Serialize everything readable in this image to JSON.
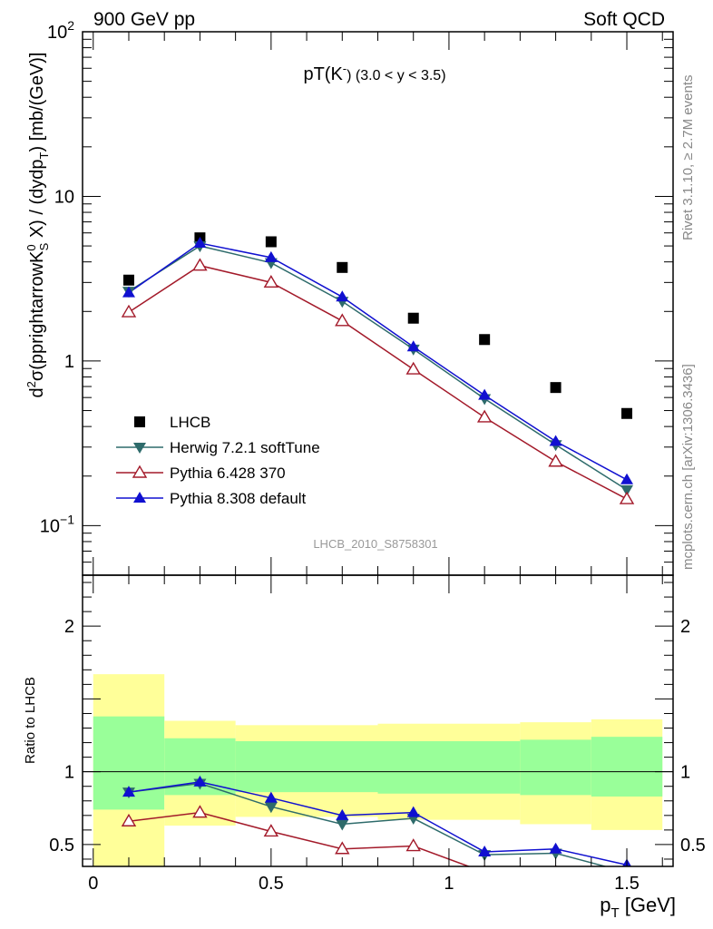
{
  "header": {
    "left": "900 GeV pp",
    "right": "Soft QCD"
  },
  "side_text": {
    "rivet": "Rivet 3.1.10, ≥ 2.7M events",
    "site": "mcplots.cern.ch [arXiv:1306.3436]"
  },
  "colors": {
    "lhcb": "#000000",
    "herwig": "#2e6b6b",
    "pythia6": "#a31a2a",
    "pythia8": "#1010d0",
    "band_outer": "#ffff99",
    "band_inner": "#99ff99"
  },
  "chart_data": [
    {
      "type": "scatter",
      "title_main": "pT(K",
      "title_sup": "-",
      "title_tail": ") (3.0 < y < 3.5)",
      "ylabel": "d²σ(pprightarrowK⁰S X) / (dydpT) [mb/(GeV)]",
      "ylabel_parts": {
        "a": "d",
        "sup1": "2",
        "b": "σ(pprightarrowK",
        "sup2": "0",
        "sub2": "S",
        "c": " X) / (dydp",
        "sub3": "T",
        "d": ") [mb/(GeV)]"
      },
      "xlim": [
        -0.03,
        1.63
      ],
      "ylim": [
        0.05,
        100
      ],
      "yscale": "log",
      "y_ticks": [
        {
          "value": 0.1,
          "base": "10",
          "exp": "−1"
        },
        {
          "value": 1,
          "base": "1",
          "exp": ""
        },
        {
          "value": 10,
          "base": "10",
          "exp": ""
        },
        {
          "value": 100,
          "base": "10",
          "exp": "2"
        }
      ],
      "watermark": "LHCB_2010_S8758301",
      "legend_position": "bottom-left",
      "series": [
        {
          "name": "LHCB",
          "marker": "square",
          "color": "#000000",
          "x": [
            0.1,
            0.3,
            0.5,
            0.7,
            0.9,
            1.1,
            1.3,
            1.5
          ],
          "y": [
            3.1,
            5.6,
            5.3,
            3.7,
            1.82,
            1.35,
            0.69,
            0.48
          ]
        },
        {
          "name": "Herwig 7.2.1 softTune",
          "marker": "triangle-down",
          "color": "#2e6b6b",
          "x": [
            0.1,
            0.3,
            0.5,
            0.7,
            0.9,
            1.1,
            1.3,
            1.5
          ],
          "y": [
            2.65,
            5.0,
            3.95,
            2.3,
            1.18,
            0.59,
            0.31,
            0.165
          ]
        },
        {
          "name": "Pythia 6.428 370",
          "marker": "triangle-open",
          "color": "#a31a2a",
          "x": [
            0.1,
            0.3,
            0.5,
            0.7,
            0.9,
            1.1,
            1.3,
            1.5
          ],
          "y": [
            1.98,
            3.8,
            3.0,
            1.75,
            0.89,
            0.455,
            0.245,
            0.145
          ]
        },
        {
          "name": "Pythia 8.308 default",
          "marker": "triangle-up",
          "color": "#1010d0",
          "x": [
            0.1,
            0.3,
            0.5,
            0.7,
            0.9,
            1.1,
            1.3,
            1.5
          ],
          "y": [
            2.6,
            5.2,
            4.25,
            2.45,
            1.22,
            0.62,
            0.325,
            0.19
          ]
        }
      ]
    },
    {
      "type": "line",
      "ylabel": "Ratio to LHCB",
      "xlabel_main": "p",
      "xlabel_sub": "T",
      "xlabel_tail": " [GeV]",
      "xlim": [
        -0.03,
        1.63
      ],
      "ylim": [
        0.35,
        2.35
      ],
      "x_ticks": [
        0,
        0.5,
        1,
        1.5
      ],
      "x_tick_labels": [
        "0",
        "0.5",
        "1",
        "1.5"
      ],
      "y_ticks": [
        0.5,
        1,
        2
      ],
      "y_tick_labels": [
        "0.5",
        "1",
        "2"
      ],
      "bands": {
        "edges": [
          0.0,
          0.2,
          0.4,
          0.8,
          1.2,
          1.4,
          1.6
        ],
        "outer": [
          [
            0.28,
            1.67
          ],
          [
            0.63,
            1.35
          ],
          [
            0.69,
            1.32
          ],
          [
            0.67,
            1.33
          ],
          [
            0.64,
            1.34
          ],
          [
            0.6,
            1.36
          ]
        ],
        "inner": [
          [
            0.74,
            1.38
          ],
          [
            0.84,
            1.23
          ],
          [
            0.86,
            1.21
          ],
          [
            0.85,
            1.21
          ],
          [
            0.84,
            1.22
          ],
          [
            0.83,
            1.24
          ]
        ],
        "outer_seg_overrides": [
          {
            "x0": 0.2,
            "x1": 0.4,
            "lo": 0.63
          }
        ]
      },
      "series": [
        {
          "name": "Herwig 7.2.1 softTune",
          "marker": "triangle-down",
          "color": "#2e6b6b",
          "x": [
            0.1,
            0.3,
            0.5,
            0.7,
            0.9,
            1.1,
            1.3,
            1.5
          ],
          "y": [
            0.86,
            0.92,
            0.76,
            0.64,
            0.68,
            0.43,
            0.44,
            0.31
          ]
        },
        {
          "name": "Pythia 6.428 370",
          "marker": "triangle-open",
          "color": "#a31a2a",
          "x": [
            0.1,
            0.3,
            0.5,
            0.7,
            0.9,
            1.1,
            1.3,
            1.5
          ],
          "y": [
            0.66,
            0.72,
            0.59,
            0.47,
            0.49,
            0.31,
            0.31,
            0.29
          ]
        },
        {
          "name": "Pythia 8.308 default",
          "marker": "triangle-up",
          "color": "#1010d0",
          "x": [
            0.1,
            0.3,
            0.5,
            0.7,
            0.9,
            1.1,
            1.3,
            1.5
          ],
          "y": [
            0.86,
            0.93,
            0.82,
            0.7,
            0.72,
            0.45,
            0.47,
            0.36
          ]
        }
      ]
    }
  ]
}
